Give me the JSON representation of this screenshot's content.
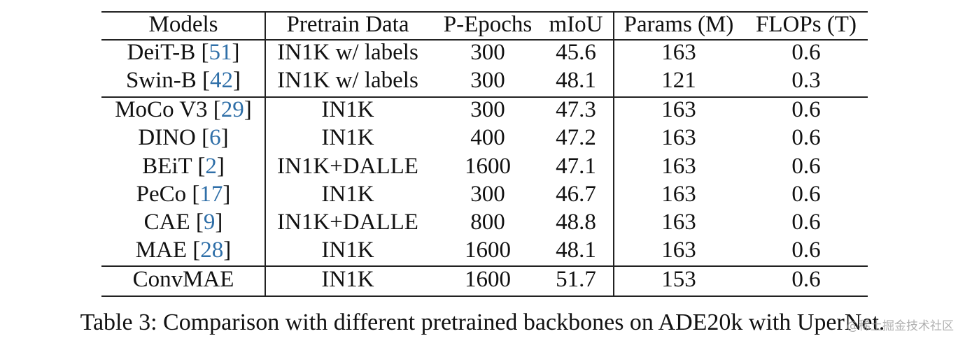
{
  "table": {
    "header": [
      "Models",
      "Pretrain Data",
      "P-Epochs",
      "mIoU",
      "Params (M)",
      "FLOPs (T)"
    ],
    "groups": [
      [
        [
          "DeiT-B [51]",
          "IN1K w/ labels",
          300,
          45.6,
          163,
          0.6
        ],
        [
          "Swin-B [42]",
          "IN1K w/ labels",
          300,
          48.1,
          121,
          0.3
        ]
      ],
      [
        [
          "MoCo V3 [29]",
          "IN1K",
          300,
          47.3,
          163,
          0.6
        ],
        [
          "DINO [6]",
          "IN1K",
          400,
          47.2,
          163,
          0.6
        ],
        [
          "BEiT [2]",
          "IN1K+DALLE",
          1600,
          47.1,
          163,
          0.6
        ],
        [
          "PeCo [17]",
          "IN1K",
          300,
          46.7,
          163,
          0.6
        ],
        [
          "CAE [9]",
          "IN1K+DALLE",
          800,
          48.8,
          163,
          0.6
        ],
        [
          "MAE [28]",
          "IN1K",
          1600,
          48.1,
          163,
          0.6
        ]
      ],
      [
        [
          "ConvMAE",
          "IN1K",
          1600,
          51.7,
          153,
          0.6
        ]
      ]
    ]
  },
  "caption": "Table 3: Comparison with different pretrained backbones on ADE20k with UperNet.",
  "watermark": "@稀土掘金技术社区"
}
